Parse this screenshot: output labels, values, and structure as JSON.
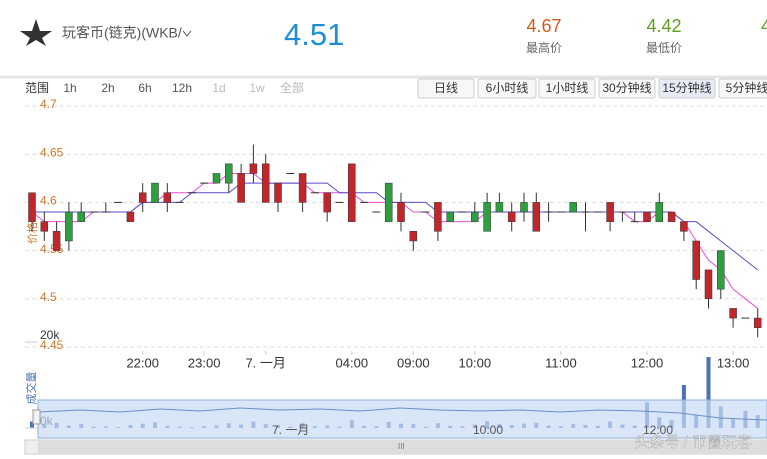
{
  "header": {
    "pair": "玩客币(链克)(WKB/",
    "price": "4.51",
    "stats": [
      {
        "value": "4.67",
        "label": "最高价"
      },
      {
        "value": "4.42",
        "label": "最低价"
      },
      {
        "value": "4"
      }
    ]
  },
  "range": {
    "label": "范围",
    "buttons": [
      "1h",
      "2h",
      "6h",
      "12h",
      "1d",
      "1w",
      "全部"
    ]
  },
  "periods": [
    "日线",
    "6小时线",
    "1小时线",
    "30分钟线",
    "15分钟线",
    "5分钟线"
  ],
  "navigator": {
    "labels": [
      "7. 一月",
      "10:00",
      "12:00"
    ]
  },
  "watermark": "头条号 / 币圈玩客",
  "chart_data": {
    "type": "candlestick",
    "y_label": "价格",
    "volume_label": "成交量",
    "categories": [
      null,
      null,
      null,
      null,
      null,
      null,
      null,
      null,
      null,
      "22:00",
      null,
      null,
      null,
      null,
      "23:00",
      null,
      null,
      null,
      null,
      "7. 一月",
      null,
      null,
      null,
      null,
      null,
      null,
      "04:00",
      null,
      null,
      null,
      null,
      "09:00",
      null,
      null,
      null,
      null,
      "10:00",
      null,
      null,
      null,
      null,
      null,
      null,
      "11:00",
      null,
      null,
      null,
      null,
      null,
      null,
      "12:00",
      null,
      null,
      null,
      null,
      null,
      null,
      "13:00",
      null,
      null
    ],
    "open": [
      4.61,
      4.58,
      4.57,
      4.56,
      4.58,
      4.59,
      4.59,
      4.6,
      4.59,
      4.61,
      4.6,
      4.61,
      4.6,
      4.61,
      4.62,
      4.62,
      4.62,
      4.63,
      4.64,
      4.64,
      4.62,
      4.63,
      4.63,
      4.61,
      4.61,
      4.6,
      4.64,
      4.6,
      4.59,
      4.58,
      4.6,
      4.57,
      4.59,
      4.6,
      4.58,
      4.59,
      4.58,
      4.57,
      4.59,
      4.59,
      4.59,
      4.6,
      4.59,
      4.59,
      4.59,
      4.59,
      4.59,
      4.6,
      4.59,
      4.58,
      4.59,
      4.58,
      4.59,
      4.58,
      4.56,
      4.53,
      4.51,
      4.49,
      4.48,
      4.48
    ],
    "high": [
      4.61,
      4.59,
      4.58,
      4.6,
      4.6,
      4.59,
      4.6,
      4.6,
      4.59,
      4.62,
      4.62,
      4.62,
      4.6,
      4.61,
      4.62,
      4.63,
      4.64,
      4.64,
      4.66,
      4.65,
      4.62,
      4.63,
      4.63,
      4.61,
      4.61,
      4.6,
      4.64,
      4.6,
      4.59,
      4.62,
      4.61,
      4.57,
      4.59,
      4.6,
      4.59,
      4.59,
      4.6,
      4.61,
      4.61,
      4.6,
      4.61,
      4.61,
      4.6,
      4.59,
      4.6,
      4.6,
      4.59,
      4.6,
      4.59,
      4.59,
      4.59,
      4.61,
      4.59,
      4.58,
      4.56,
      4.53,
      4.55,
      4.49,
      4.48,
      4.49
    ],
    "low": [
      4.57,
      4.56,
      4.55,
      4.55,
      4.58,
      4.59,
      4.59,
      4.6,
      4.58,
      4.59,
      4.6,
      4.59,
      4.6,
      4.61,
      4.62,
      4.62,
      4.61,
      4.6,
      4.62,
      4.6,
      4.59,
      4.63,
      4.59,
      4.61,
      4.58,
      4.6,
      4.58,
      4.6,
      4.59,
      4.58,
      4.57,
      4.55,
      4.59,
      4.56,
      4.58,
      4.59,
      4.58,
      4.57,
      4.59,
      4.57,
      4.58,
      4.57,
      4.58,
      4.59,
      4.59,
      4.57,
      4.59,
      4.57,
      4.58,
      4.58,
      4.58,
      4.58,
      4.58,
      4.56,
      4.51,
      4.49,
      4.5,
      4.47,
      4.48,
      4.46
    ],
    "close": [
      4.58,
      4.57,
      4.55,
      4.59,
      4.59,
      4.59,
      4.59,
      4.6,
      4.58,
      4.6,
      4.62,
      4.6,
      4.6,
      4.61,
      4.62,
      4.63,
      4.64,
      4.6,
      4.63,
      4.6,
      4.6,
      4.63,
      4.6,
      4.61,
      4.59,
      4.6,
      4.58,
      4.6,
      4.59,
      4.62,
      4.58,
      4.56,
      4.59,
      4.57,
      4.59,
      4.59,
      4.59,
      4.6,
      4.6,
      4.58,
      4.6,
      4.57,
      4.59,
      4.59,
      4.6,
      4.59,
      4.59,
      4.58,
      4.59,
      4.58,
      4.58,
      4.6,
      4.58,
      4.57,
      4.52,
      4.5,
      4.55,
      4.48,
      4.48,
      4.47
    ],
    "up_color": "#2e9e3e",
    "down_color": "#c0272d",
    "averages": [
      {
        "color": "#e64fd6",
        "values": [
          4.59,
          4.58,
          4.58,
          4.58,
          4.58,
          4.59,
          4.59,
          4.59,
          4.59,
          4.6,
          4.6,
          4.61,
          4.61,
          4.61,
          4.62,
          4.62,
          4.63,
          4.63,
          4.63,
          4.62,
          4.62,
          4.62,
          4.62,
          4.61,
          4.61,
          4.61,
          4.61,
          4.6,
          4.6,
          4.6,
          4.6,
          4.59,
          4.59,
          4.58,
          4.58,
          4.58,
          4.58,
          4.59,
          4.59,
          4.59,
          4.59,
          4.59,
          4.59,
          4.59,
          4.59,
          4.59,
          4.59,
          4.59,
          4.59,
          4.58,
          4.58,
          4.59,
          4.59,
          4.58,
          4.56,
          4.54,
          4.53,
          4.51,
          4.5,
          4.49
        ]
      },
      {
        "color": "#5a4bc9",
        "values": [
          4.59,
          4.59,
          4.59,
          4.59,
          4.59,
          4.59,
          4.59,
          4.59,
          4.59,
          4.6,
          4.6,
          4.6,
          4.6,
          4.61,
          4.61,
          4.61,
          4.61,
          4.62,
          4.62,
          4.62,
          4.62,
          4.62,
          4.62,
          4.62,
          4.62,
          4.61,
          4.61,
          4.61,
          4.61,
          4.6,
          4.6,
          4.6,
          4.6,
          4.59,
          4.59,
          4.59,
          4.59,
          4.59,
          4.59,
          4.59,
          4.59,
          4.59,
          4.59,
          4.59,
          4.59,
          4.59,
          4.59,
          4.59,
          4.59,
          4.59,
          4.59,
          4.59,
          4.59,
          4.58,
          4.58,
          4.57,
          4.56,
          4.55,
          4.54,
          4.53
        ]
      }
    ],
    "volume": {
      "color": "#4a72b8",
      "values": [
        1500,
        800,
        1200,
        600,
        900,
        300,
        400,
        200,
        700,
        1000,
        1300,
        500,
        300,
        200,
        400,
        600,
        1100,
        800,
        1500,
        900,
        700,
        300,
        1200,
        400,
        600,
        300,
        1800,
        500,
        400,
        1400,
        1000,
        900,
        300,
        1100,
        500,
        400,
        800,
        1600,
        900,
        700,
        1000,
        1200,
        600,
        400,
        900,
        700,
        500,
        1500,
        800,
        600,
        6000,
        2500,
        1800,
        10000,
        3000,
        16500,
        5000,
        2000,
        4000,
        3000
      ],
      "ylim": [
        0,
        20000
      ],
      "yticks": [
        {
          "value": 0,
          "label": "0k"
        },
        {
          "value": 20000,
          "label": "20k"
        }
      ]
    },
    "ylim": [
      4.45,
      4.7
    ],
    "yticks": [
      4.45,
      4.5,
      4.55,
      4.6,
      4.65,
      4.7
    ],
    "grid": true
  }
}
